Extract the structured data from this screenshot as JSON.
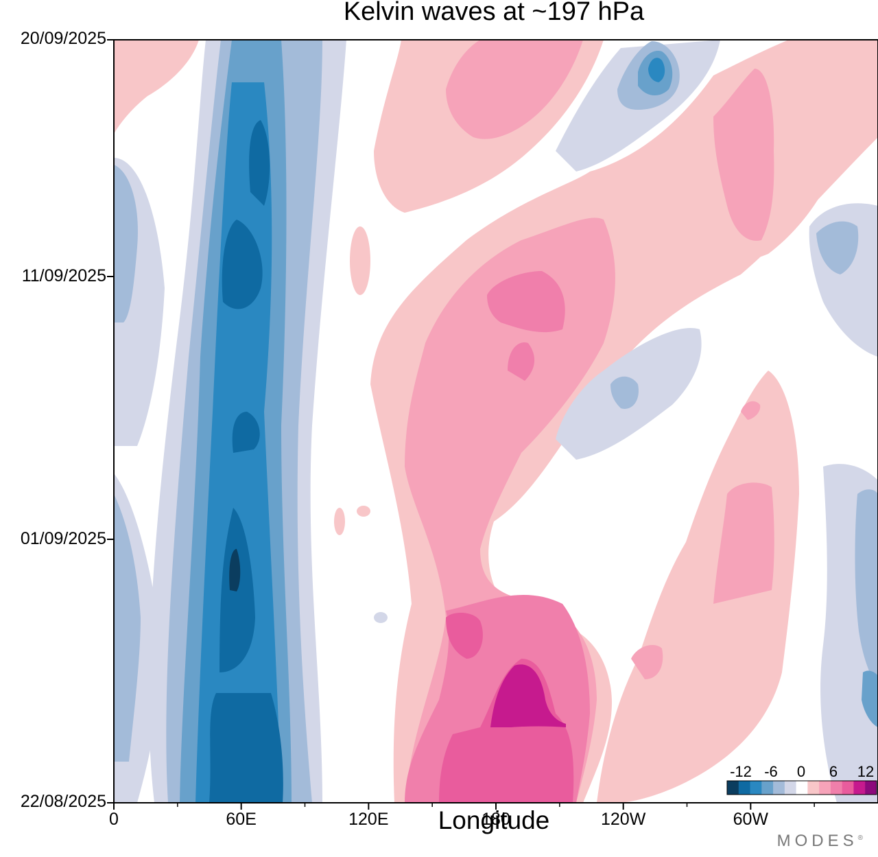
{
  "chart_data": {
    "type": "heatmap",
    "title": "Kelvin waves at ~197 hPa",
    "xlabel": "Longitude",
    "ylabel": "",
    "x_tick_labels": [
      "0",
      "60E",
      "120E",
      "180",
      "120W",
      "60W"
    ],
    "x_tick_values_deg_east": [
      0,
      60,
      120,
      180,
      240,
      300
    ],
    "x_range_deg_east": [
      0,
      360
    ],
    "y_tick_labels": [
      "20/09/2025",
      "11/09/2025",
      "01/09/2025",
      "22/08/2025"
    ],
    "y_range": [
      "22/08/2025",
      "20/09/2025"
    ],
    "colorbar": {
      "tick_labels": [
        "-12",
        "-6",
        "0",
        "6",
        "12"
      ],
      "levels": [
        -14,
        -12,
        -10,
        -8,
        -6,
        -4,
        -2,
        2,
        4,
        6,
        8,
        10,
        12,
        14
      ],
      "colors": [
        "#0b3d5f",
        "#0f6aa2",
        "#2a88c1",
        "#68a1cb",
        "#a3bbd9",
        "#d3d7e8",
        "#ffffff",
        "#f8c6c8",
        "#f6a3b9",
        "#f07fab",
        "#e95c9d",
        "#c61a8e",
        "#8c0a7c"
      ]
    },
    "features": [
      {
        "name": "negative band near 60E",
        "value_min": -14,
        "lon_center": 60,
        "date_span": [
          "22/08/2025",
          "20/09/2025"
        ]
      },
      {
        "name": "positive region near 180",
        "value_max": 12,
        "lon_center": 180,
        "date_span": [
          "22/08/2025",
          "15/09/2025"
        ]
      },
      {
        "name": "positive streak toward 60W",
        "value_max": 8,
        "lon_center": 290,
        "date_span": [
          "27/08/2025",
          "20/09/2025"
        ]
      },
      {
        "name": "negative patch near 135W",
        "value_min": -10,
        "lon_center": 225,
        "date_span": [
          "15/09/2025",
          "20/09/2025"
        ]
      }
    ]
  },
  "brand": "MODES"
}
